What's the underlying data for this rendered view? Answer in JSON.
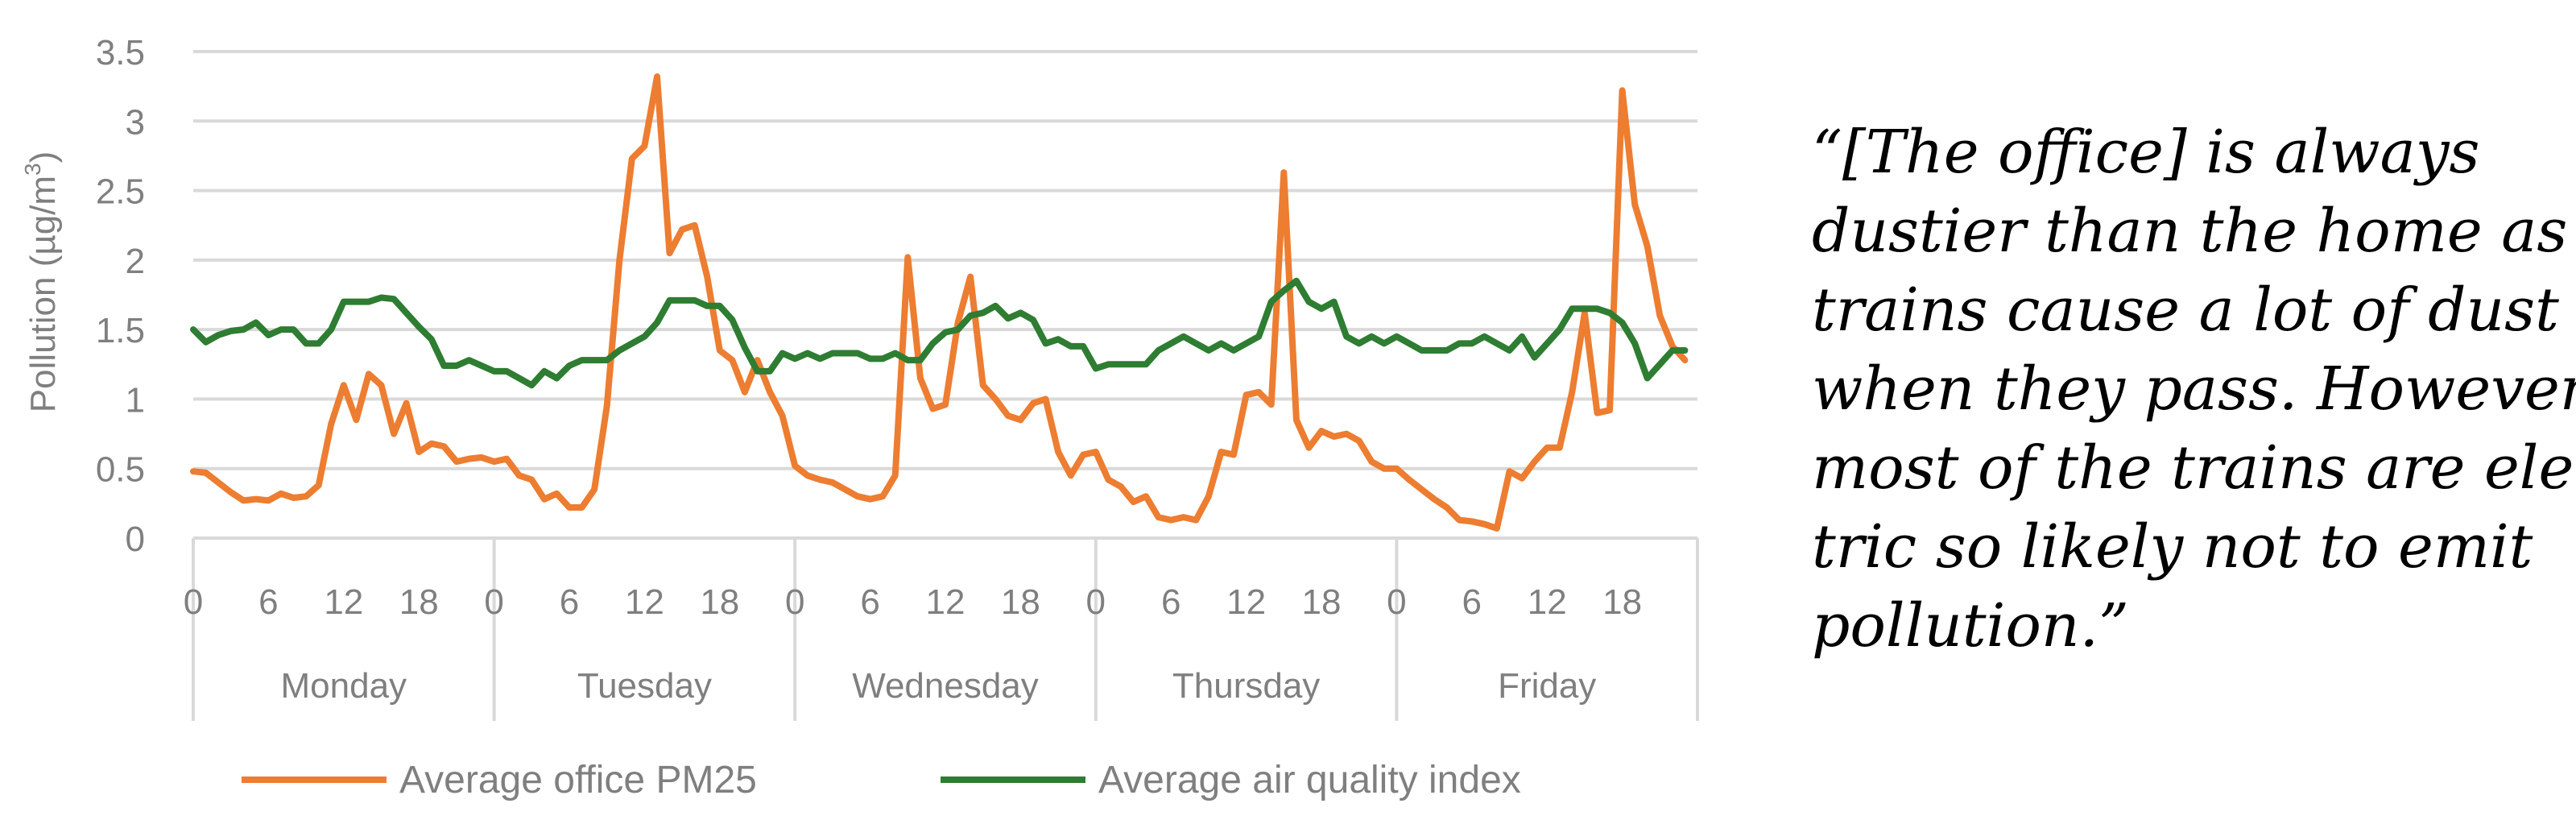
{
  "chart_data": {
    "type": "line",
    "title": "",
    "ylabel": "Pollution (µg/m³)",
    "ylabel_parts": {
      "main": "Pollution (µg/m",
      "sup": "3",
      "close": ")"
    },
    "ylim": [
      0,
      3.5
    ],
    "yticks": [
      "0",
      "0.5",
      "1",
      "1.5",
      "2",
      "2.5",
      "3",
      "3.5"
    ],
    "hours_per_day": 24,
    "xtick_labels": [
      "0",
      "6",
      "12",
      "18"
    ],
    "days": [
      "Monday",
      "Tuesday",
      "Wednesday",
      "Thursday",
      "Friday"
    ],
    "legend_position": "bottom",
    "series": [
      {
        "name": "Average office PM25",
        "color": "#ED7D31",
        "values": [
          0.48,
          0.47,
          0.4,
          0.33,
          0.27,
          0.28,
          0.27,
          0.32,
          0.29,
          0.3,
          0.38,
          0.82,
          1.1,
          0.85,
          1.18,
          1.1,
          0.75,
          0.97,
          0.62,
          0.68,
          0.66,
          0.55,
          0.57,
          0.58,
          0.55,
          0.57,
          0.45,
          0.42,
          0.28,
          0.32,
          0.22,
          0.22,
          0.35,
          0.95,
          2.0,
          2.73,
          2.82,
          3.32,
          2.05,
          2.22,
          2.25,
          1.88,
          1.35,
          1.28,
          1.05,
          1.28,
          1.05,
          0.88,
          0.52,
          0.45,
          0.42,
          0.4,
          0.35,
          0.3,
          0.28,
          0.3,
          0.45,
          2.02,
          1.15,
          0.93,
          0.96,
          1.55,
          1.88,
          1.1,
          1.0,
          0.88,
          0.85,
          0.97,
          1.0,
          0.62,
          0.45,
          0.6,
          0.62,
          0.42,
          0.37,
          0.26,
          0.3,
          0.15,
          0.13,
          0.15,
          0.13,
          0.3,
          0.62,
          0.6,
          1.03,
          1.05,
          0.96,
          2.63,
          0.85,
          0.65,
          0.77,
          0.73,
          0.75,
          0.7,
          0.55,
          0.5,
          0.5,
          0.42,
          0.35,
          0.28,
          0.22,
          0.13,
          0.12,
          0.1,
          0.07,
          0.48,
          0.43,
          0.55,
          0.65,
          0.65,
          1.05,
          1.62,
          0.9,
          0.92,
          3.22,
          2.4,
          2.1,
          1.6,
          1.38,
          1.28
        ]
      },
      {
        "name": "Average air quality index",
        "color": "#2E7D32",
        "values": [
          1.5,
          1.41,
          1.46,
          1.49,
          1.5,
          1.55,
          1.46,
          1.5,
          1.5,
          1.4,
          1.4,
          1.5,
          1.7,
          1.7,
          1.7,
          1.73,
          1.72,
          1.62,
          1.52,
          1.43,
          1.24,
          1.24,
          1.28,
          1.24,
          1.2,
          1.2,
          1.15,
          1.1,
          1.2,
          1.15,
          1.24,
          1.28,
          1.28,
          1.28,
          1.35,
          1.4,
          1.45,
          1.55,
          1.71,
          1.71,
          1.71,
          1.67,
          1.67,
          1.57,
          1.37,
          1.2,
          1.2,
          1.33,
          1.29,
          1.33,
          1.29,
          1.33,
          1.33,
          1.33,
          1.29,
          1.29,
          1.33,
          1.28,
          1.28,
          1.4,
          1.48,
          1.5,
          1.6,
          1.62,
          1.67,
          1.58,
          1.62,
          1.57,
          1.4,
          1.43,
          1.38,
          1.38,
          1.22,
          1.25,
          1.25,
          1.25,
          1.25,
          1.35,
          1.4,
          1.45,
          1.4,
          1.35,
          1.4,
          1.35,
          1.4,
          1.45,
          1.7,
          1.78,
          1.85,
          1.7,
          1.65,
          1.7,
          1.45,
          1.4,
          1.45,
          1.4,
          1.45,
          1.4,
          1.35,
          1.35,
          1.35,
          1.4,
          1.4,
          1.45,
          1.4,
          1.35,
          1.45,
          1.3,
          1.4,
          1.5,
          1.65,
          1.65,
          1.65,
          1.62,
          1.55,
          1.4,
          1.15,
          1.25,
          1.35,
          1.35
        ]
      }
    ]
  },
  "quote_lines": [
    "“[The office] is always",
    "dustier than the home as",
    "trains cause a lot of dust",
    "when they pass. However,",
    "most of the trains are elec-",
    "tric so likely not to emit",
    "pollution.”"
  ]
}
